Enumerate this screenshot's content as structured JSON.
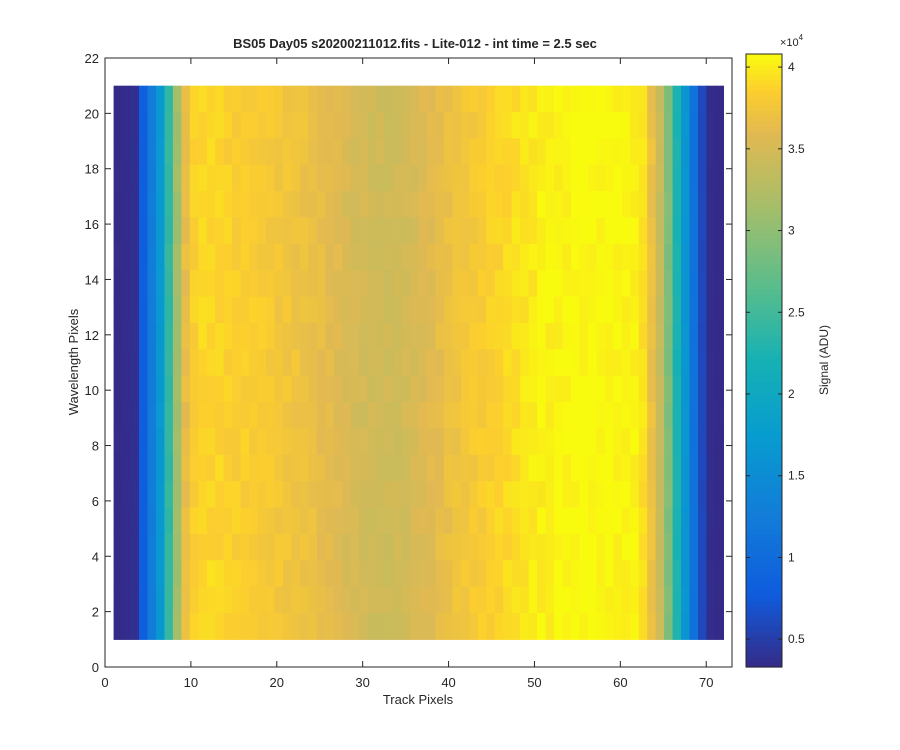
{
  "chart_data": {
    "type": "heatmap",
    "title": "BS05 Day05  s20200211012.fits - Lite-012 - int time = 2.5 sec",
    "xlabel": "Track Pixels",
    "ylabel": "Wavelength Pixels",
    "colorbar_label": "Signal (ADU)",
    "colorbar_exponent": "×10",
    "colorbar_exponent_power": "4",
    "colormap": "parula",
    "xlim": [
      0,
      73
    ],
    "ylim": [
      0,
      22
    ],
    "x_ticks": [
      "0",
      "10",
      "20",
      "30",
      "40",
      "50",
      "60",
      "70"
    ],
    "y_ticks": [
      "0",
      "2",
      "4",
      "6",
      "8",
      "10",
      "12",
      "14",
      "16",
      "18",
      "20",
      "22"
    ],
    "colorbar_ticks": [
      "0.5",
      "1",
      "1.5",
      "2",
      "2.5",
      "3",
      "3.5",
      "4"
    ],
    "clim": [
      3300,
      40800
    ],
    "x_range": [
      1,
      72
    ],
    "y_range": [
      1,
      21
    ],
    "columns": 72,
    "rows": 21,
    "row_variation": 0.015,
    "column_profile": [
      3300,
      3500,
      3800,
      8200,
      12500,
      17000,
      24000,
      31000,
      36500,
      38500,
      39000,
      39000,
      38800,
      38600,
      38400,
      38300,
      38200,
      38100,
      37900,
      37700,
      37500,
      37300,
      37100,
      36800,
      36500,
      36100,
      35800,
      35400,
      35100,
      34800,
      34600,
      34500,
      34500,
      34600,
      34800,
      35100,
      35500,
      35900,
      36400,
      36800,
      37200,
      37600,
      37900,
      38200,
      38500,
      38800,
      39100,
      39400,
      39700,
      40000,
      40200,
      40400,
      40500,
      40600,
      40700,
      40800,
      40800,
      40800,
      40700,
      40600,
      40500,
      40300,
      39500,
      37000,
      34000,
      29000,
      22500,
      16500,
      11000,
      6000,
      3600,
      3300
    ]
  }
}
